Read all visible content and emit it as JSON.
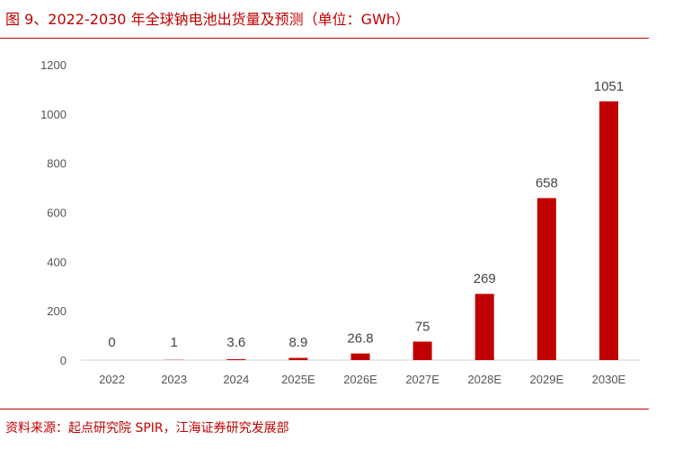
{
  "header": {
    "title": "图 9、2022-2030 年全球钠电池出货量及预测（单位：GWh）"
  },
  "footer": {
    "source": "资料来源：起点研究院 SPIR，江海证券研究发展部"
  },
  "colors": {
    "accent": "#c00000",
    "bar": "#c00000",
    "axis": "#d0d0d0"
  },
  "chart_data": {
    "type": "bar",
    "categories": [
      "2022",
      "2023",
      "2024",
      "2025E",
      "2026E",
      "2027E",
      "2028E",
      "2029E",
      "2030E"
    ],
    "values": [
      0,
      1,
      3.6,
      8.9,
      26.8,
      75,
      269,
      658,
      1051
    ],
    "data_labels": [
      "0",
      "1",
      "3.6",
      "8.9",
      "26.8",
      "75",
      "269",
      "658",
      "1051"
    ],
    "yticks": [
      0,
      200,
      400,
      600,
      800,
      1000,
      1200
    ],
    "ylim": [
      0,
      1200
    ],
    "grid": false,
    "legend": "none"
  }
}
